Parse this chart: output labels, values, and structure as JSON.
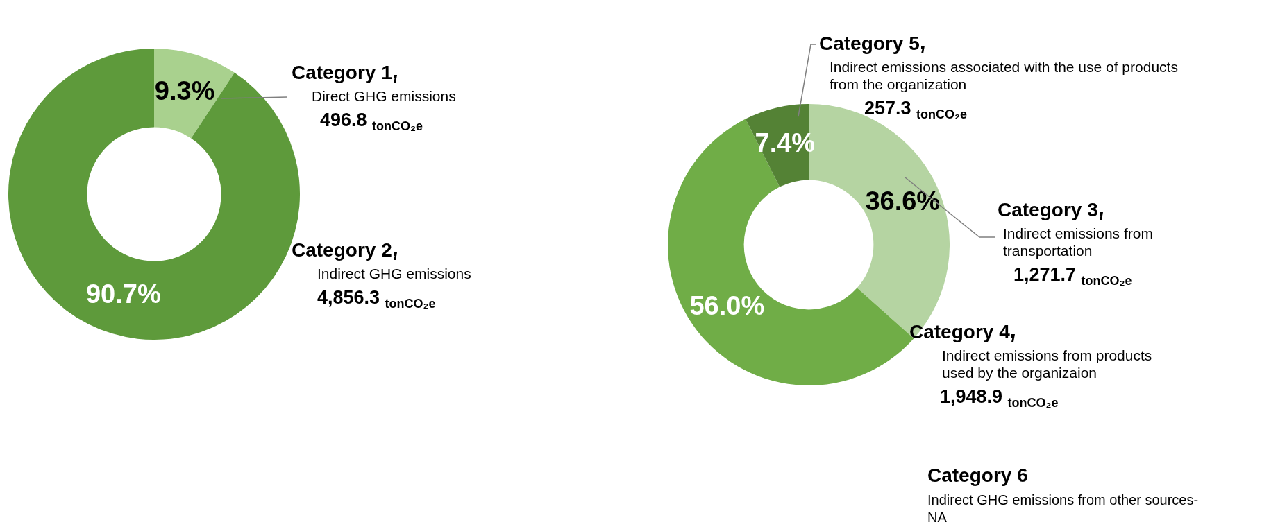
{
  "chart_data": [
    {
      "type": "donut",
      "categories": [
        "Category 1",
        "Category 2"
      ],
      "values": [
        9.3,
        90.7
      ],
      "colors": [
        "#a9d18e",
        "#5e9a3b"
      ],
      "value_labels": [
        "9.3%",
        "90.7%"
      ],
      "annotations": [
        "Direct GHG emissions",
        "496.8 $_{tonCO₂e}$",
        "Indirect GHG emissions",
        "4,856.3 $_{tonCO₂e}$"
      ]
    },
    {
      "type": "donut",
      "categories": [
        "Category 3",
        "Category 4",
        "Category 5"
      ],
      "values": [
        36.6,
        56.0,
        7.4
      ],
      "colors": [
        "#b5d4a2",
        "#70ad47",
        "#548235"
      ],
      "value_labels": [
        "36.6%",
        "56.0%",
        "7.4%"
      ],
      "annotations": [
        "Indirect emissions from transportation",
        "1,271.7 $_{tonCO₂e}$",
        "Indirect emissions from products used by the organizaion",
        "1,948.9 $_{tonCO₂e}$",
        "Indirect emissions associated with the use of products from the organization",
        "257.3 $_{tonCO₂e}$"
      ]
    },
    {
      "type": "other",
      "title": "Category 6",
      "annotations": [
        "Indirect GHG emissions from other sources-NA"
      ]
    }
  ]
}
